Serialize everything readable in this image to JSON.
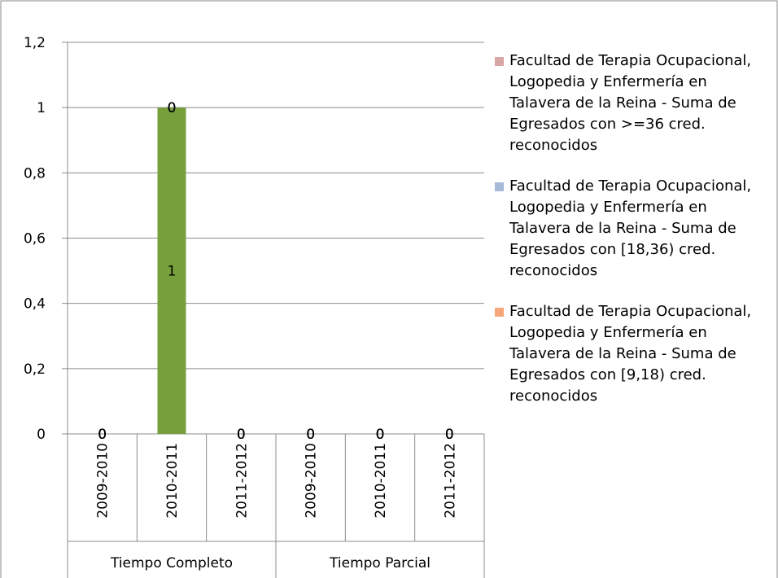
{
  "chart_data": {
    "type": "bar",
    "stacked": true,
    "categories": [
      "2009-2010",
      "2010-2011",
      "2011-2012",
      "2009-2010",
      "2010-2011",
      "2011-2012"
    ],
    "groups": [
      "Tiempo Completo",
      "Tiempo Parcial"
    ],
    "series": [
      {
        "color": "#77a03c",
        "values": [
          0,
          1,
          0,
          0,
          0,
          0
        ]
      },
      {
        "name": "Facultad de Terapia Ocupacional, Logopedia y Enfermería en Talavera de la Reina - Suma de Egresados con >=36 cred. reconocidos",
        "color": "#d9a6a6",
        "values": [
          0,
          0,
          0,
          0,
          0,
          0
        ]
      },
      {
        "name": "Facultad de Terapia Ocupacional, Logopedia y Enfermería en Talavera de la Reina - Suma de Egresados con [18,36) cred. reconocidos",
        "color": "#a7b9d8",
        "values": [
          0,
          0,
          0,
          0,
          0,
          0
        ]
      },
      {
        "name": "Facultad de Terapia Ocupacional, Logopedia y Enfermería en Talavera de la Reina - Suma de Egresados con [9,18) cred. reconocidos",
        "color": "#f5a779",
        "values": [
          0,
          0,
          0,
          0,
          0,
          0
        ]
      }
    ],
    "ylim": [
      0,
      1.2
    ],
    "yticks": [
      0,
      {
        "value": 0.2,
        "label": "0,2"
      },
      {
        "value": 0.4,
        "label": "0,4"
      },
      {
        "value": 0.6,
        "label": "0,6"
      },
      {
        "value": 0.8,
        "label": "0,8"
      },
      1,
      {
        "value": 1.2,
        "label": "1,2"
      }
    ],
    "grid": true,
    "data_labels": true,
    "legend": "right"
  }
}
